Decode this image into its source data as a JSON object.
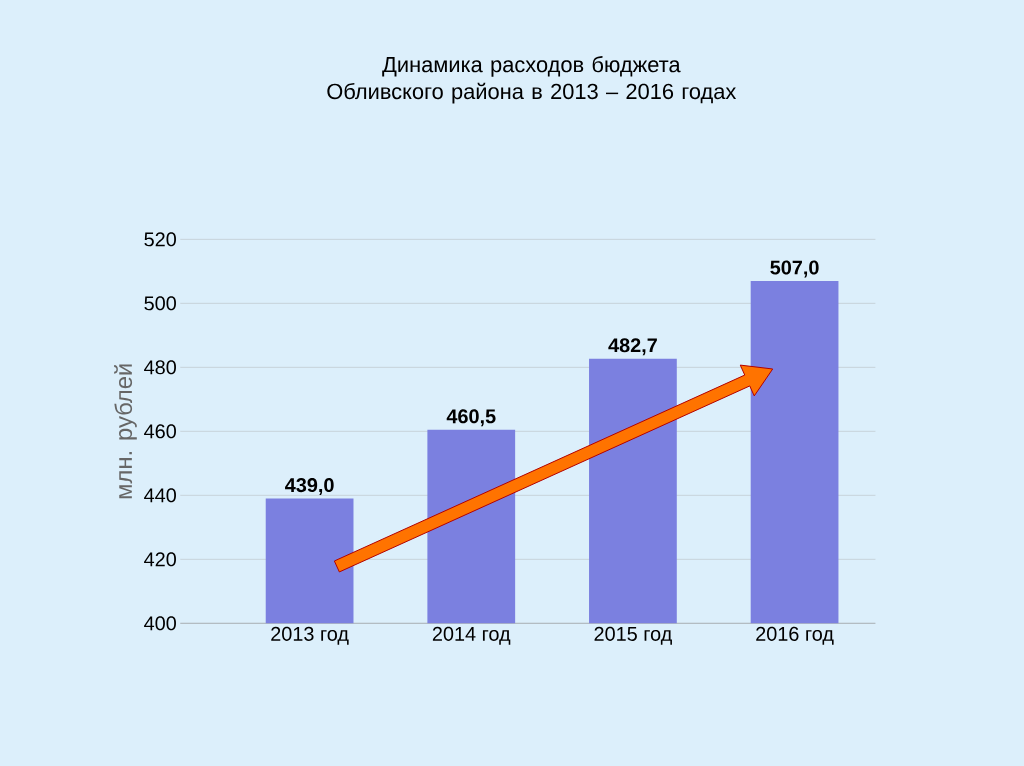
{
  "chart_data": {
    "type": "bar",
    "title": "Динамика расходов бюджета Обливского района в 2013 – 2016 годах",
    "categories": [
      "2013 год",
      "2014 год",
      "2015 год",
      "2016 год"
    ],
    "values": [
      439.0,
      460.5,
      482.7,
      507.0
    ],
    "value_labels": [
      "439,0",
      "460,5",
      "482,7",
      "507,0"
    ],
    "color": "#7b80e0",
    "ylabel": "млн. рублей",
    "ylim": [
      400,
      520
    ],
    "yticks": [
      400,
      420,
      440,
      460,
      480,
      500,
      520
    ],
    "grid": "y"
  }
}
